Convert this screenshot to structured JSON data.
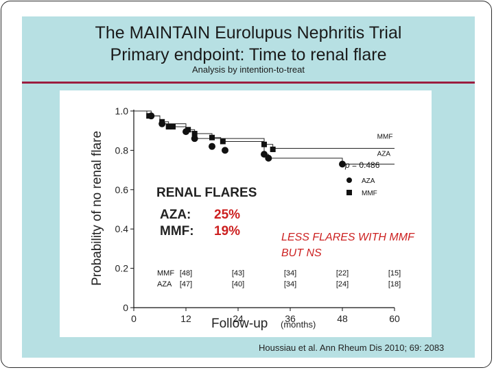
{
  "slide": {
    "title_line1": "The MAINTAIN Eurolupus Nephritis Trial",
    "title_line2": "Primary endpoint: Time to renal flare",
    "subtitle": "Analysis by intention-to-treat",
    "citation": "Houssiau et al. Ann Rheum Dis 2010; 69: 2083",
    "background_color": "#b7e0e3",
    "rule_color": "#9b1d3f"
  },
  "chart_data": {
    "type": "line",
    "subtype": "kaplan-meier step curve",
    "ylabel": "Probability of no renal flare",
    "xlabel": "Follow-up",
    "xlabel_unit": "(months)",
    "xlim": [
      0,
      60
    ],
    "ylim": [
      0,
      1.0
    ],
    "xticks": [
      "0",
      "12",
      "24",
      "36",
      "48",
      "60"
    ],
    "xtick_values": [
      0,
      12,
      24,
      36,
      48,
      60
    ],
    "yticks": [
      "0",
      "0.2",
      "0.4",
      "0.6",
      "0.8",
      "1.0"
    ],
    "ytick_values": [
      0,
      0.2,
      0.4,
      0.6,
      0.8,
      1.0
    ],
    "series": [
      {
        "name": "MMF",
        "end_label": "MMF",
        "marker": "square",
        "steps": [
          [
            0,
            1.0
          ],
          [
            3,
            0.975
          ],
          [
            6,
            0.945
          ],
          [
            8,
            0.92
          ],
          [
            12,
            0.905
          ],
          [
            14,
            0.885
          ],
          [
            18,
            0.865
          ],
          [
            20,
            0.845
          ],
          [
            30,
            0.83
          ],
          [
            32,
            0.81
          ],
          [
            60,
            0.81
          ]
        ],
        "markers": [
          [
            3.5,
            0.975
          ],
          [
            6.5,
            0.945
          ],
          [
            8,
            0.92
          ],
          [
            9,
            0.92
          ],
          [
            12.5,
            0.905
          ],
          [
            14,
            0.885
          ],
          [
            18,
            0.865
          ],
          [
            20.5,
            0.845
          ],
          [
            30,
            0.83
          ],
          [
            32,
            0.805
          ]
        ]
      },
      {
        "name": "AZA",
        "end_label": "AZA",
        "marker": "circle",
        "steps": [
          [
            0,
            1.0
          ],
          [
            4,
            0.975
          ],
          [
            6,
            0.935
          ],
          [
            12,
            0.895
          ],
          [
            14,
            0.86
          ],
          [
            24,
            0.86
          ],
          [
            30,
            0.78
          ],
          [
            31,
            0.76
          ],
          [
            48,
            0.73
          ],
          [
            60,
            0.73
          ]
        ],
        "markers": [
          [
            4,
            0.975
          ],
          [
            6.5,
            0.935
          ],
          [
            12,
            0.895
          ],
          [
            14,
            0.86
          ],
          [
            18,
            0.82
          ],
          [
            21,
            0.8
          ],
          [
            30,
            0.78
          ],
          [
            31,
            0.76
          ],
          [
            48,
            0.73
          ]
        ]
      }
    ],
    "legend": {
      "p_label": "p",
      "p_value": "= 0.486",
      "entries": [
        {
          "label": "AZA",
          "marker": "circle"
        },
        {
          "label": "MMF",
          "marker": "square"
        }
      ]
    },
    "at_risk": {
      "times": [
        0,
        12,
        24,
        36,
        48,
        60
      ],
      "rows": [
        {
          "label": "MMF",
          "counts": [
            "[48]",
            "[43]",
            "[34]",
            "[22]",
            "[15]"
          ],
          "at": [
            12,
            24,
            36,
            48,
            60
          ]
        },
        {
          "label": "AZA",
          "counts": [
            "[47]",
            "[40]",
            "[34]",
            "[24]",
            "[18]"
          ],
          "at": [
            12,
            24,
            36,
            48,
            60
          ]
        }
      ]
    },
    "annotations": {
      "flares_title": "RENAL FLARES",
      "aza_label": "AZA:",
      "aza_value": "25%",
      "mmf_label": "MMF:",
      "mmf_value": "19%",
      "note_line1": "LESS FLARES WITH MMF",
      "note_line2": "BUT NS",
      "highlight_color": "#cc1f1f"
    }
  }
}
